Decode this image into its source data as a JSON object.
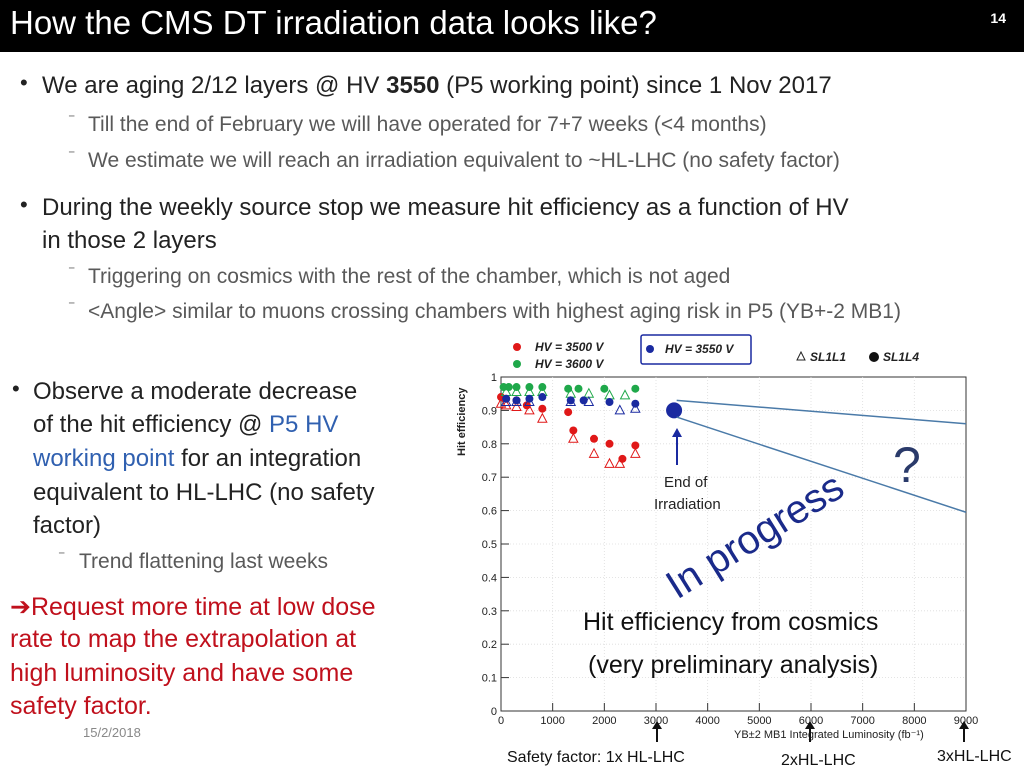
{
  "slide": {
    "title": "How the CMS DT irradiation data looks like?",
    "page_number": "14",
    "date": "15/2/2018"
  },
  "bullets": {
    "b1_prefix": "We are aging  2/12 layers @ HV ",
    "b1_hv": "3550",
    "b1_suffix": "  (P5 working point) since  1 Nov 2017",
    "b1_sub1": "Till the end of February we will have operated for 7+7 weeks (<4 months)",
    "b1_sub2": " We estimate we will reach an irradiation equivalent to ~HL-LHC (no safety factor)",
    "b2_line1": "During the weekly source stop we measure  hit  efficiency as a function of HV",
    "b2_line2": "in those 2 layers",
    "b2_sub1": "Triggering on  cosmics with the rest of  the chamber, which is not aged",
    "b2_sub2": "<Angle> similar to  muons crossing  chambers  with highest aging risk in P5 (YB+-2 MB1)",
    "b3_line1": "Observe a moderate decrease",
    "b3_line2a": "of the hit efficiency @  ",
    "b3_line2b": "P5 HV",
    "b3_line3a": "working point",
    "b3_line3b": "  for an integration",
    "b3_line4": "equivalent to  HL-LHC (no safety",
    "b3_line5": "factor)",
    "b3_sub1": "Trend flattening last weeks",
    "request_arrow": "➔",
    "request_line1": "Request more time at low dose",
    "request_line2": "rate to map the extrapolation at",
    "request_line3": "high luminosity and have some",
    "request_line4": "safety factor."
  },
  "chart_data": {
    "type": "scatter",
    "xlabel": "YB±2 MB1 Integrated Luminosity (fb⁻¹)",
    "ylabel": "Hit efficiency",
    "xlim": [
      0,
      9000
    ],
    "ylim": [
      0,
      1
    ],
    "x_ticks": [
      "0",
      "1000",
      "2000",
      "3000",
      "4000",
      "5000",
      "6000",
      "7000",
      "8000",
      "9000"
    ],
    "y_ticks": [
      "0",
      "0.1",
      "0.2",
      "0.3",
      "0.4",
      "0.5",
      "0.6",
      "0.7",
      "0.8",
      "0.9",
      "1"
    ],
    "legend": {
      "hv3500": "HV = 3500 V",
      "hv3600": "HV = 3600 V",
      "hv3550": "HV = 3550 V",
      "sl1l1": "SL1L1",
      "sl1l4": "SL1L4",
      "colors": {
        "hv3500": "#e01818",
        "hv3600": "#1fa84a",
        "hv3550": "#1a2aa0"
      }
    },
    "series": [
      {
        "name": "HV = 3500 V",
        "marker": "circle",
        "color": "#e01818",
        "points": [
          [
            0,
            0.94
          ],
          [
            100,
            0.935
          ],
          [
            300,
            0.93
          ],
          [
            500,
            0.915
          ],
          [
            800,
            0.905
          ],
          [
            1300,
            0.895
          ],
          [
            1400,
            0.84
          ],
          [
            1800,
            0.815
          ],
          [
            2100,
            0.8
          ],
          [
            2350,
            0.755
          ],
          [
            2600,
            0.795
          ]
        ]
      },
      {
        "name": "HV = 3500 V",
        "marker": "triangle",
        "color": "#e01818",
        "points": [
          [
            0,
            0.92
          ],
          [
            100,
            0.915
          ],
          [
            300,
            0.91
          ],
          [
            550,
            0.9
          ],
          [
            800,
            0.875
          ],
          [
            1400,
            0.815
          ],
          [
            1800,
            0.77
          ],
          [
            2100,
            0.74
          ],
          [
            2300,
            0.74
          ],
          [
            2600,
            0.77
          ]
        ]
      },
      {
        "name": "HV = 3600 V",
        "marker": "circle",
        "color": "#1fa84a",
        "points": [
          [
            50,
            0.97
          ],
          [
            150,
            0.97
          ],
          [
            300,
            0.97
          ],
          [
            550,
            0.97
          ],
          [
            800,
            0.97
          ],
          [
            1300,
            0.965
          ],
          [
            1500,
            0.965
          ],
          [
            2000,
            0.965
          ],
          [
            2600,
            0.965
          ]
        ]
      },
      {
        "name": "HV = 3600 V",
        "marker": "triangle",
        "color": "#1fa84a",
        "points": [
          [
            100,
            0.955
          ],
          [
            300,
            0.955
          ],
          [
            550,
            0.955
          ],
          [
            800,
            0.955
          ],
          [
            1350,
            0.95
          ],
          [
            1700,
            0.95
          ],
          [
            2100,
            0.945
          ],
          [
            2400,
            0.945
          ]
        ]
      },
      {
        "name": "HV = 3550 V",
        "marker": "circle",
        "color": "#1a2aa0",
        "points": [
          [
            100,
            0.935
          ],
          [
            300,
            0.93
          ],
          [
            550,
            0.935
          ],
          [
            800,
            0.94
          ],
          [
            1350,
            0.93
          ],
          [
            1600,
            0.93
          ],
          [
            2100,
            0.925
          ],
          [
            2600,
            0.92
          ]
        ]
      },
      {
        "name": "HV = 3550 V",
        "marker": "triangle",
        "color": "#1a2aa0",
        "points": [
          [
            100,
            0.925
          ],
          [
            300,
            0.925
          ],
          [
            550,
            0.925
          ],
          [
            1350,
            0.925
          ],
          [
            1700,
            0.925
          ],
          [
            2300,
            0.9
          ],
          [
            2600,
            0.905
          ]
        ]
      }
    ],
    "end_point": {
      "x": 3350,
      "y": 0.9,
      "color": "#1a2aa0"
    },
    "extrapolation_upper": [
      [
        3400,
        0.93
      ],
      [
        9000,
        0.86
      ]
    ],
    "extrapolation_lower": [
      [
        3400,
        0.88
      ],
      [
        9000,
        0.595
      ]
    ],
    "annotations": {
      "end_of_irradiation_1": "End of",
      "end_of_irradiation_2": "Irradiation",
      "question": "?",
      "in_progress": "In progress",
      "caption1": "Hit efficiency from cosmics",
      "caption2": "(very preliminary analysis)",
      "safety_1x": "Safety factor: 1x HL-LHC",
      "safety_2x": "2xHL-LHC",
      "safety_3x": "3xHL-LHC"
    }
  }
}
